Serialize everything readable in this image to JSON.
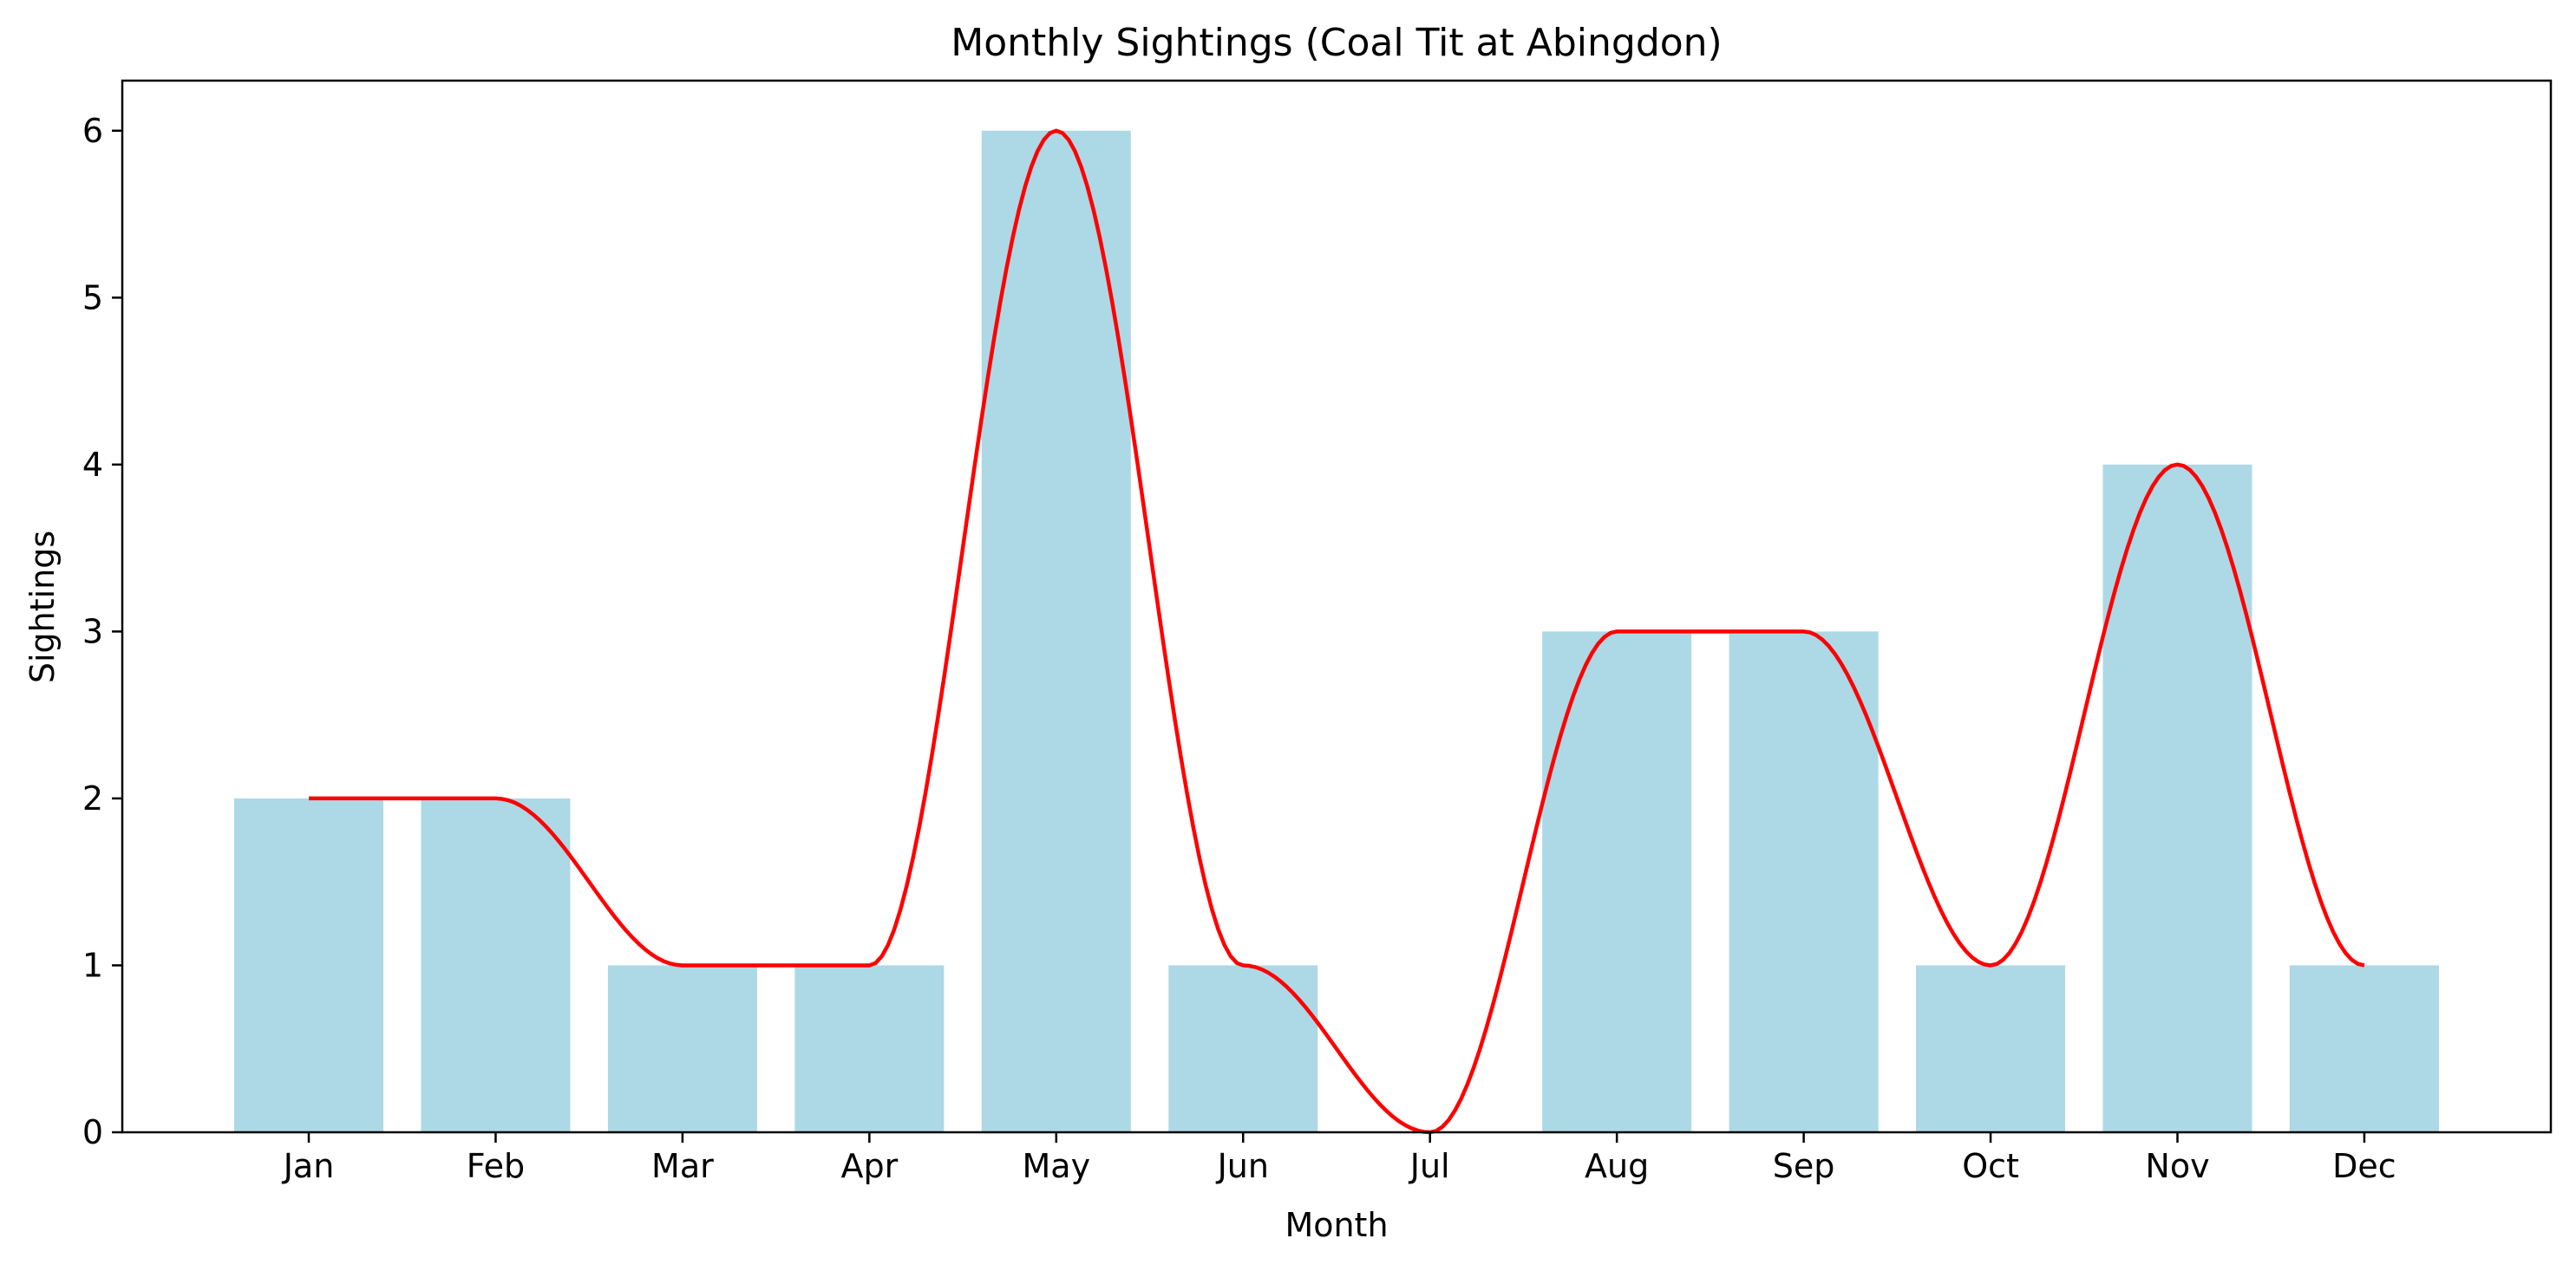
{
  "chart_data": {
    "type": "bar",
    "title": "Monthly Sightings (Coal Tit at Abingdon)",
    "xlabel": "Month",
    "ylabel": "Sightings",
    "categories": [
      "Jan",
      "Feb",
      "Mar",
      "Apr",
      "May",
      "Jun",
      "Jul",
      "Aug",
      "Sep",
      "Oct",
      "Nov",
      "Dec"
    ],
    "values": [
      2,
      2,
      1,
      1,
      6,
      1,
      0,
      3,
      3,
      1,
      4,
      1
    ],
    "ylim": [
      0,
      6.3
    ],
    "yticks": [
      0,
      1,
      2,
      3,
      4,
      5,
      6
    ],
    "grid": false,
    "bar_color": "#add8e6",
    "line_color": "#ff0000",
    "overlay": "smooth curve through monthly values"
  }
}
